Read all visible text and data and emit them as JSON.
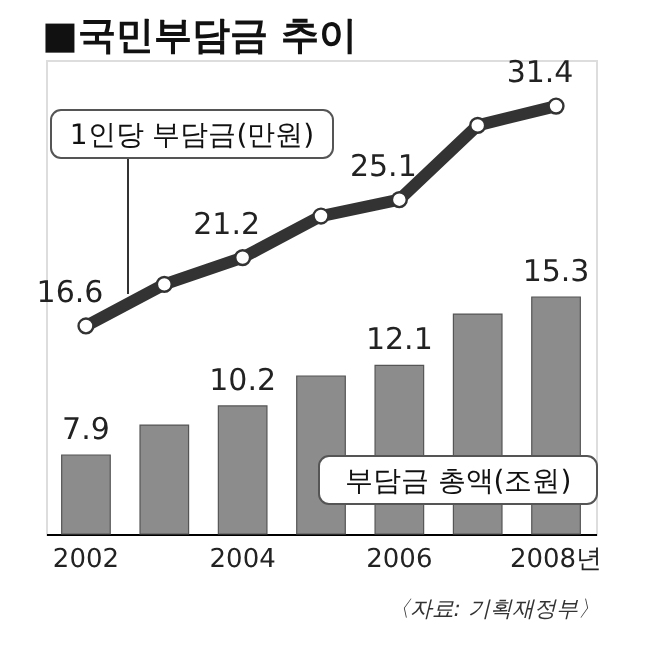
{
  "chart_data": {
    "type": "bar",
    "title": "■국민부담금 추이",
    "categories": [
      "2002",
      null,
      "2004",
      null,
      "2006",
      null,
      "2008년"
    ],
    "series": [
      {
        "name": "부담금 총액(조원)",
        "color": "#8c8c8c",
        "values": [
          7.9,
          9.3,
          10.2,
          11.6,
          12.1,
          14.5,
          15.3
        ],
        "value_labels": [
          "7.9",
          null,
          "10.2",
          null,
          "12.1",
          null,
          "15.3"
        ]
      },
      {
        "name": "1인당 부담금(만원)",
        "type": "line",
        "axis": "y2",
        "color": "#333333",
        "values": [
          16.6,
          19.4,
          21.2,
          24.0,
          25.1,
          30.1,
          31.4
        ],
        "value_labels": [
          "16.6",
          null,
          "21.2",
          null,
          "25.1",
          null,
          "31.4"
        ]
      }
    ],
    "ylim": [
      4.2,
      26.4
    ],
    "y2lim": [
      2.6,
      34.5
    ],
    "marker": "circle",
    "tick_labels": "x",
    "legend": false,
    "grid": false,
    "annotations": [
      "〈자료: 기획재정부〉"
    ]
  }
}
